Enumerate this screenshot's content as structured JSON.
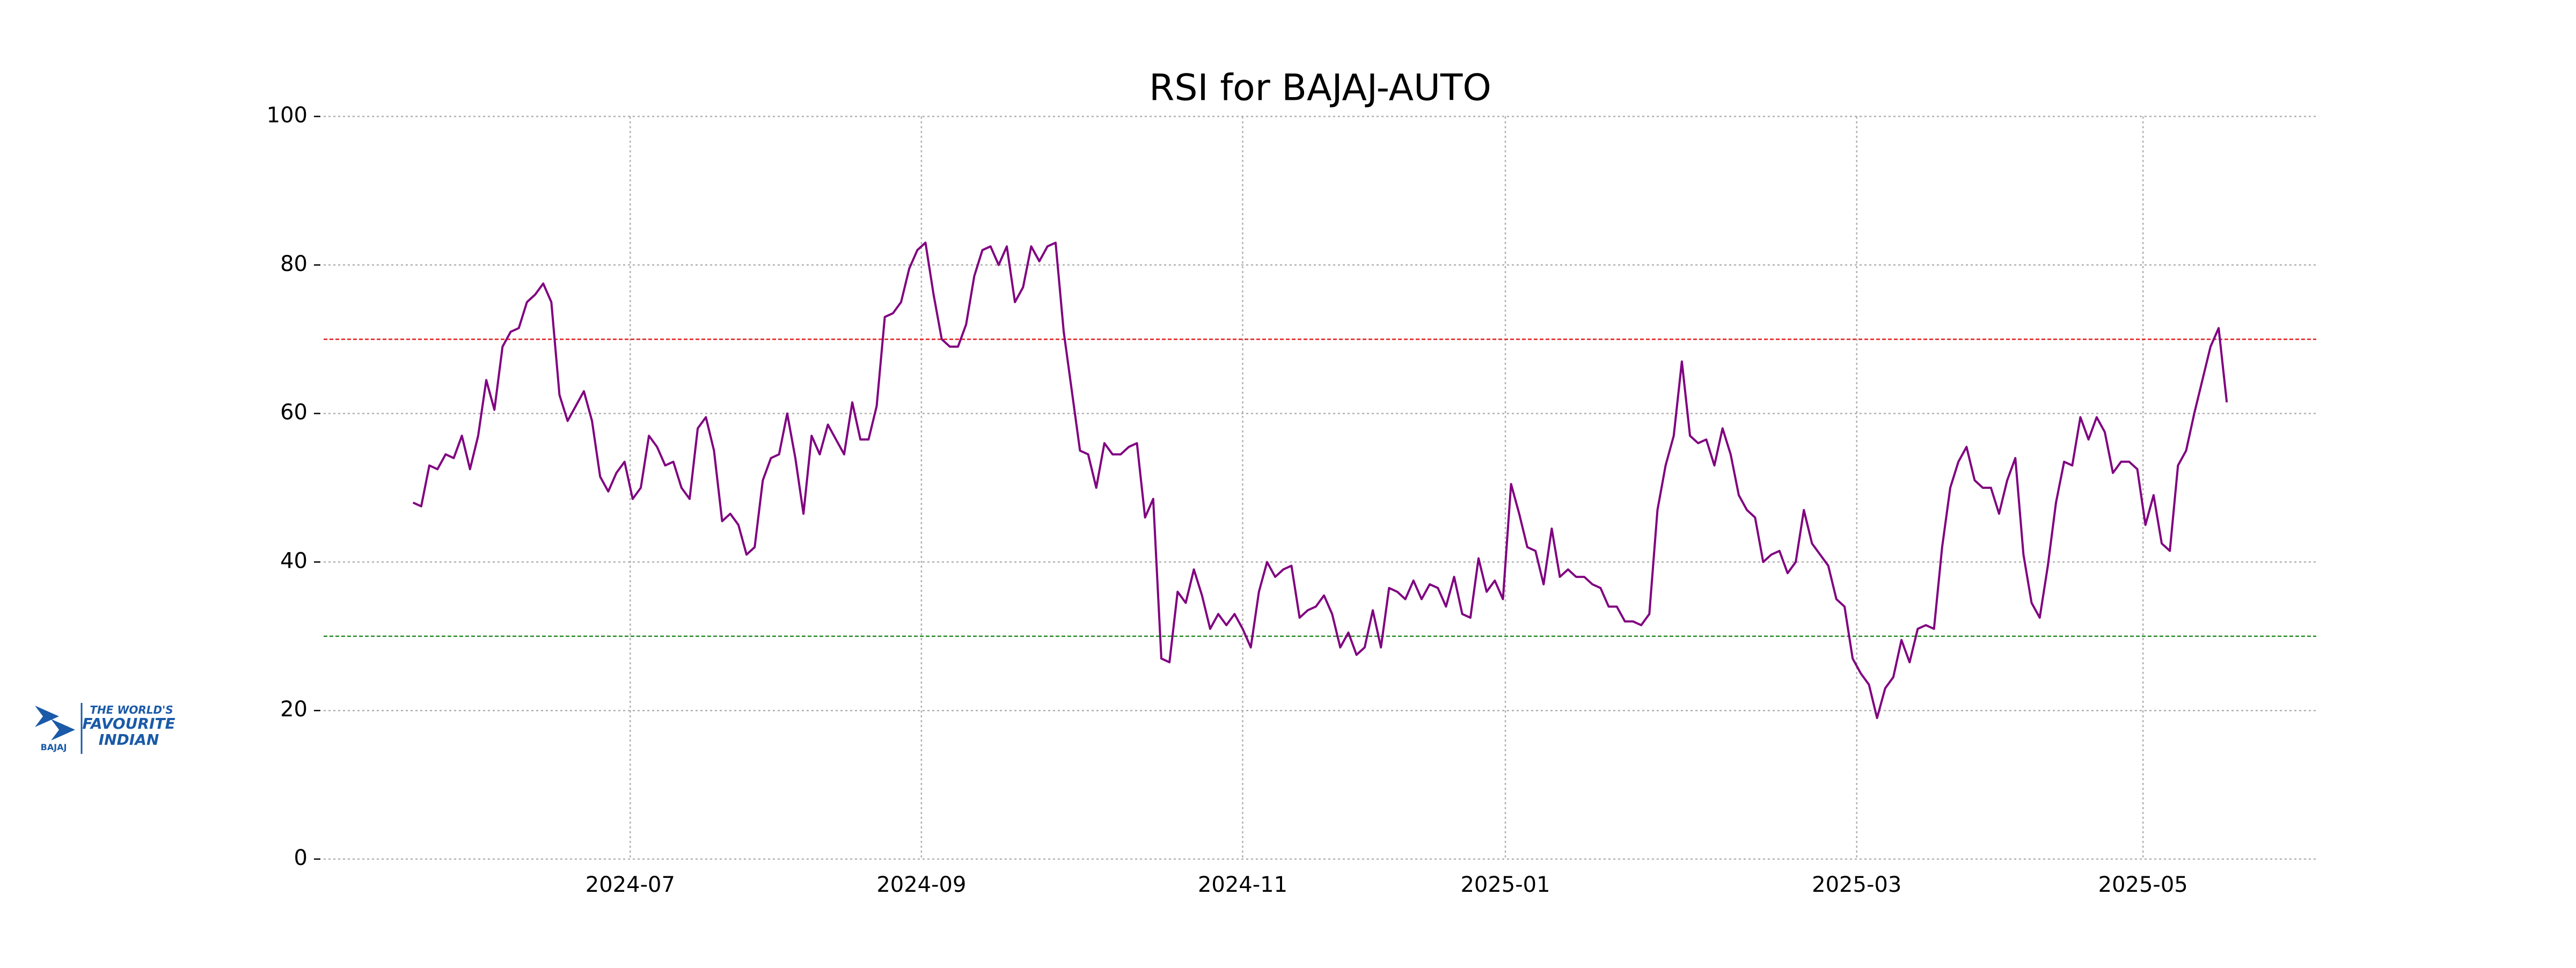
{
  "chart_data": {
    "type": "line",
    "title": "RSI for BAJAJ-AUTO",
    "values": [
      48,
      47.5,
      53,
      52.5,
      54.5,
      54,
      57,
      52.5,
      57,
      64.5,
      60.5,
      69,
      71,
      71.5,
      75,
      76,
      77.5,
      75,
      62.5,
      59,
      61,
      63,
      59,
      51.5,
      49.5,
      52,
      53.5,
      48.5,
      50,
      57,
      55.5,
      53,
      53.5,
      50,
      48.5,
      58,
      59.5,
      55,
      45.5,
      46.5,
      45,
      41,
      42,
      51,
      54,
      54.5,
      60,
      54,
      46.5,
      57,
      54.5,
      58.5,
      56.5,
      54.5,
      61.5,
      56.5,
      56.5,
      61,
      73,
      73.5,
      75,
      79.5,
      82,
      83,
      76,
      70,
      69,
      69,
      72,
      78.5,
      82,
      82.5,
      80,
      82.5,
      75,
      77,
      82.5,
      80.5,
      82.5,
      83,
      71,
      63,
      55,
      54.5,
      50,
      56,
      54.5,
      54.5,
      55.5,
      56,
      46,
      48.5,
      27,
      26.5,
      36,
      34.5,
      39,
      35.5,
      31,
      33,
      31.5,
      33,
      31,
      28.5,
      36,
      40,
      38,
      39,
      39.5,
      32.5,
      33.5,
      34,
      35.5,
      33,
      28.5,
      30.5,
      27.5,
      28.5,
      33.5,
      28.5,
      36.5,
      36,
      35,
      37.5,
      35,
      37,
      36.5,
      34,
      38,
      33,
      32.5,
      40.5,
      36,
      37.5,
      35,
      50.5,
      46.5,
      42,
      41.5,
      37,
      44.5,
      38,
      39,
      38,
      38,
      37,
      36.5,
      34,
      34,
      32,
      32,
      31.5,
      33,
      47,
      53,
      57,
      67,
      57,
      56,
      56.5,
      53,
      58,
      54.5,
      49,
      47,
      46,
      40,
      41,
      41.5,
      38.5,
      40,
      47,
      42.5,
      41,
      39.5,
      35,
      34,
      27,
      25,
      23.5,
      19,
      23,
      24.5,
      29.5,
      26.5,
      31,
      31.5,
      31,
      42,
      50,
      53.5,
      55.5,
      51,
      50,
      50,
      46.5,
      51,
      54,
      41,
      34.5,
      32.5,
      39.5,
      48,
      53.5,
      53,
      59.5,
      56.5,
      59.5,
      57.5,
      52,
      53.5,
      53.5,
      52.5,
      45,
      49,
      42.5,
      41.5,
      53,
      55,
      60,
      64.5,
      69,
      71.5,
      61.5
    ],
    "color": "#800080",
    "xlim": [
      -11,
      234
    ],
    "xticks": [
      {
        "value": 26.7,
        "label": "2024-07"
      },
      {
        "value": 62.5,
        "label": "2024-09"
      },
      {
        "value": 102,
        "label": "2024-11"
      },
      {
        "value": 134.3,
        "label": "2025-01"
      },
      {
        "value": 177.5,
        "label": "2025-03"
      },
      {
        "value": 212.7,
        "label": "2025-05"
      }
    ],
    "ylim": [
      0,
      100
    ],
    "yticks": [
      0,
      20,
      40,
      60,
      80,
      100
    ],
    "grid": true,
    "reference_lines": [
      {
        "value": 70,
        "color": "#e41a1c"
      },
      {
        "value": 30,
        "color": "#2a8a2a"
      }
    ],
    "logo": {
      "brand": "BAJAJ",
      "tagline_top": "THE WORLD'S",
      "tagline": "FAVOURITE",
      "tagline_bottom": "INDIAN"
    }
  }
}
